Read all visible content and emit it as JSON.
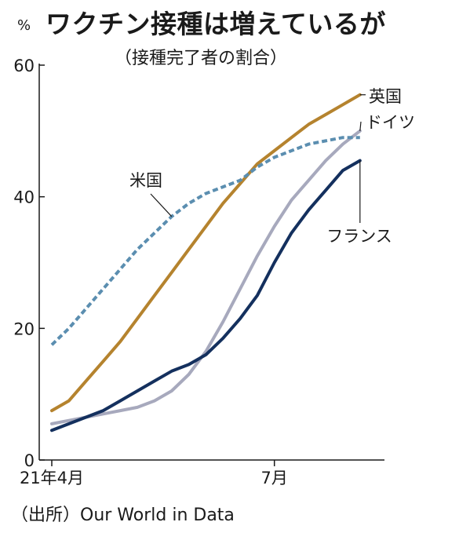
{
  "header": {
    "title": "ワクチン接種は増えているが",
    "subtitle": "（接種完了者の割合）",
    "unit": "%"
  },
  "footer": {
    "source": "（出所）Our World in Data"
  },
  "chart_data": {
    "type": "line",
    "title": "ワクチン接種は増えているが",
    "subtitle": "（接種完了者の割合）",
    "ylabel": "%",
    "ylim": [
      0,
      60
    ],
    "yticks": [
      0,
      20,
      40,
      60
    ],
    "xlim": [
      "2021-04-01",
      "2021-08-15"
    ],
    "xticks": [
      {
        "date": "2021-04-01",
        "label": "21年4月"
      },
      {
        "date": "2021-07-01",
        "label": "7月"
      }
    ],
    "grid": false,
    "legend": "direct labels",
    "series": [
      {
        "name": "英国",
        "color": "#b5832e",
        "style": "solid",
        "points": [
          [
            "2021-04-01",
            7.5
          ],
          [
            "2021-04-08",
            9.0
          ],
          [
            "2021-04-15",
            12.0
          ],
          [
            "2021-04-22",
            15.0
          ],
          [
            "2021-04-29",
            18.0
          ],
          [
            "2021-05-06",
            21.5
          ],
          [
            "2021-05-13",
            25.0
          ],
          [
            "2021-05-20",
            28.5
          ],
          [
            "2021-05-27",
            32.0
          ],
          [
            "2021-06-03",
            35.5
          ],
          [
            "2021-06-10",
            39.0
          ],
          [
            "2021-06-17",
            42.0
          ],
          [
            "2021-06-24",
            45.0
          ],
          [
            "2021-07-01",
            47.0
          ],
          [
            "2021-07-08",
            49.0
          ],
          [
            "2021-07-15",
            51.0
          ],
          [
            "2021-07-22",
            52.5
          ],
          [
            "2021-07-29",
            54.0
          ],
          [
            "2021-08-05",
            55.5
          ]
        ]
      },
      {
        "name": "ドイツ",
        "color": "#a7a9bd",
        "style": "solid",
        "points": [
          [
            "2021-04-01",
            5.5
          ],
          [
            "2021-04-08",
            6.0
          ],
          [
            "2021-04-15",
            6.5
          ],
          [
            "2021-04-22",
            7.0
          ],
          [
            "2021-04-29",
            7.5
          ],
          [
            "2021-05-06",
            8.0
          ],
          [
            "2021-05-13",
            9.0
          ],
          [
            "2021-05-20",
            10.5
          ],
          [
            "2021-05-27",
            13.0
          ],
          [
            "2021-06-03",
            16.5
          ],
          [
            "2021-06-10",
            21.0
          ],
          [
            "2021-06-17",
            26.0
          ],
          [
            "2021-06-24",
            31.0
          ],
          [
            "2021-07-01",
            35.5
          ],
          [
            "2021-07-08",
            39.5
          ],
          [
            "2021-07-15",
            42.5
          ],
          [
            "2021-07-22",
            45.5
          ],
          [
            "2021-07-29",
            48.0
          ],
          [
            "2021-08-05",
            50.0
          ]
        ]
      },
      {
        "name": "米国",
        "color": "#5b8eb0",
        "style": "dashed",
        "points": [
          [
            "2021-04-01",
            17.5
          ],
          [
            "2021-04-08",
            20.0
          ],
          [
            "2021-04-15",
            23.0
          ],
          [
            "2021-04-22",
            26.0
          ],
          [
            "2021-04-29",
            29.0
          ],
          [
            "2021-05-06",
            32.0
          ],
          [
            "2021-05-13",
            34.5
          ],
          [
            "2021-05-20",
            37.0
          ],
          [
            "2021-05-27",
            39.0
          ],
          [
            "2021-06-03",
            40.5
          ],
          [
            "2021-06-10",
            41.5
          ],
          [
            "2021-06-17",
            42.5
          ],
          [
            "2021-06-24",
            44.5
          ],
          [
            "2021-07-01",
            46.0
          ],
          [
            "2021-07-08",
            47.0
          ],
          [
            "2021-07-15",
            48.0
          ],
          [
            "2021-07-22",
            48.5
          ],
          [
            "2021-07-29",
            49.0
          ],
          [
            "2021-08-05",
            49.0
          ]
        ]
      },
      {
        "name": "フランス",
        "color": "#14305e",
        "style": "solid",
        "points": [
          [
            "2021-04-01",
            4.5
          ],
          [
            "2021-04-08",
            5.5
          ],
          [
            "2021-04-15",
            6.5
          ],
          [
            "2021-04-22",
            7.5
          ],
          [
            "2021-04-29",
            9.0
          ],
          [
            "2021-05-06",
            10.5
          ],
          [
            "2021-05-13",
            12.0
          ],
          [
            "2021-05-20",
            13.5
          ],
          [
            "2021-05-27",
            14.5
          ],
          [
            "2021-06-03",
            16.0
          ],
          [
            "2021-06-10",
            18.5
          ],
          [
            "2021-06-17",
            21.5
          ],
          [
            "2021-06-24",
            25.0
          ],
          [
            "2021-07-01",
            30.0
          ],
          [
            "2021-07-08",
            34.5
          ],
          [
            "2021-07-15",
            38.0
          ],
          [
            "2021-07-22",
            41.0
          ],
          [
            "2021-07-29",
            44.0
          ],
          [
            "2021-08-05",
            45.5
          ]
        ]
      }
    ]
  }
}
